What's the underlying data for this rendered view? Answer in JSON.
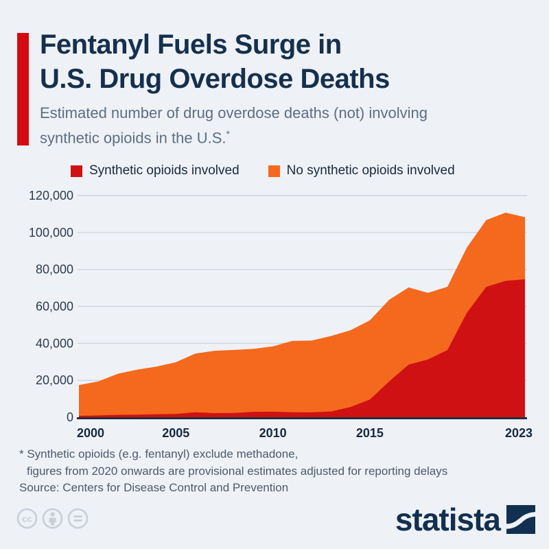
{
  "header": {
    "title_line1": "Fentanyl Fuels Surge in",
    "title_line2": "U.S. Drug Overdose Deaths",
    "subtitle_line1": "Estimated number of drug overdose deaths (not) involving",
    "subtitle_line2": "synthetic opioids in the U.S.",
    "subtitle_footnote_marker": "*",
    "accent_color": "#d30b10"
  },
  "legend": {
    "items": [
      {
        "label": "Synthetic opioids involved",
        "color": "#d01114"
      },
      {
        "label": "No synthetic opioids involved",
        "color": "#f4691e"
      }
    ]
  },
  "chart_data": {
    "type": "area",
    "stacked": true,
    "title": "Fentanyl Fuels Surge in U.S. Drug Overdose Deaths",
    "subtitle": "Estimated number of drug overdose deaths (not) involving synthetic opioids in the U.S.",
    "xlabel": "",
    "ylabel": "",
    "x": [
      2000,
      2001,
      2002,
      2003,
      2004,
      2005,
      2006,
      2007,
      2008,
      2009,
      2010,
      2011,
      2012,
      2013,
      2014,
      2015,
      2016,
      2017,
      2018,
      2019,
      2020,
      2021,
      2022,
      2023
    ],
    "series": [
      {
        "name": "Synthetic opioids involved",
        "color": "#d01114",
        "values": [
          782,
          957,
          1295,
          1400,
          1664,
          1742,
          2707,
          2213,
          2306,
          2946,
          3007,
          2666,
          2628,
          3105,
          5544,
          9580,
          19413,
          28466,
          31335,
          36359,
          56516,
          70601,
          73838,
          74702
        ]
      },
      {
        "name": "No synthetic opioids involved",
        "color": "#f4691e",
        "values": [
          16633,
          18437,
          22223,
          24385,
          25760,
          28071,
          31718,
          33797,
          34144,
          34058,
          35322,
          38674,
          38874,
          40877,
          41511,
          42824,
          44219,
          41771,
          36032,
          34271,
          35283,
          36098,
          36919,
          33598
        ]
      }
    ],
    "ylim": [
      0,
      120000
    ],
    "ytick_interval": 20000,
    "xticks": [
      2000,
      2005,
      2010,
      2015,
      2023
    ],
    "grid": true,
    "legend_position": "top",
    "grid_color": "#c9cfd7",
    "axis_color": "#222f3b",
    "tick_label_color": "#2d3c4e"
  },
  "footnotes": {
    "line1": "* Synthetic opioids (e.g. fentanyl) exclude methadone,",
    "line2": "figures from 2020 onwards are provisional estimates adjusted for reporting delays"
  },
  "source": {
    "text": "Source: Centers for Disease Control and Prevention"
  },
  "footer": {
    "cc_icons": [
      "cc-icon",
      "attribution-person-icon",
      "no-derivatives-equals-icon"
    ],
    "logo_text": "statista",
    "logo_color": "#12304f"
  }
}
